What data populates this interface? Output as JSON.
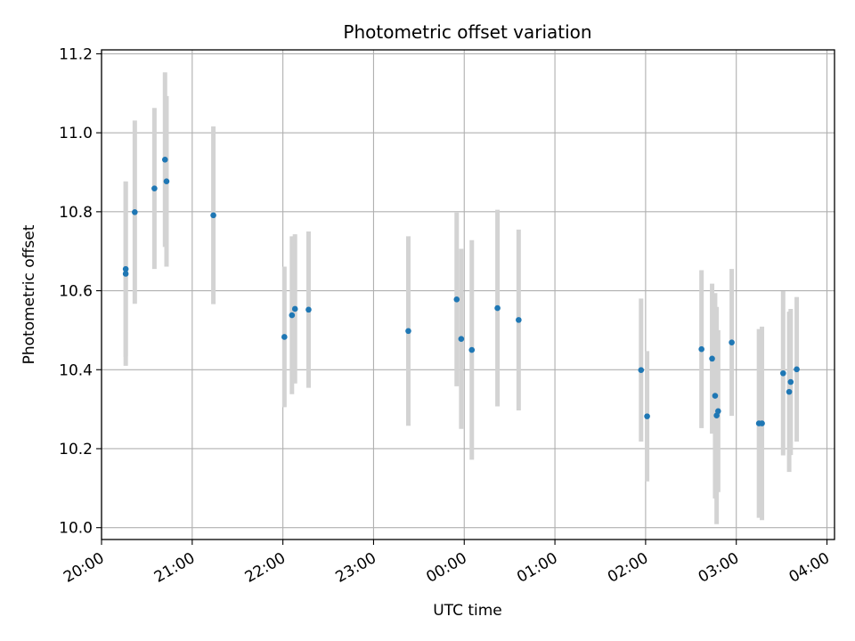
{
  "chart_data": {
    "type": "scatter",
    "title": "Photometric offset variation",
    "xlabel": "UTC time",
    "ylabel": "Photometric offset",
    "grid": true,
    "xlim": [
      "20:00",
      "04:05"
    ],
    "ylim": [
      9.97,
      11.21
    ],
    "x_ticks": [
      "20:00",
      "21:00",
      "22:00",
      "23:00",
      "00:00",
      "01:00",
      "02:00",
      "03:00",
      "04:00"
    ],
    "y_ticks": [
      "10.0",
      "10.2",
      "10.4",
      "10.6",
      "10.8",
      "11.0",
      "11.2"
    ],
    "colors": {
      "point": "#1f77b4",
      "errorbar": "#d3d3d3",
      "grid": "#b0b0b0"
    },
    "series": [
      {
        "points": [
          {
            "x": "20:16",
            "y": 10.643,
            "err": 0.233
          },
          {
            "x": "20:16",
            "y": 10.655,
            "err": 0.222
          },
          {
            "x": "20:22",
            "y": 10.799,
            "err": 0.232
          },
          {
            "x": "20:35",
            "y": 10.859,
            "err": 0.204
          },
          {
            "x": "20:42",
            "y": 10.932,
            "err": 0.221
          },
          {
            "x": "20:43",
            "y": 10.877,
            "err": 0.216
          },
          {
            "x": "21:14",
            "y": 10.791,
            "err": 0.225
          },
          {
            "x": "22:01",
            "y": 10.483,
            "err": 0.178
          },
          {
            "x": "22:06",
            "y": 10.538,
            "err": 0.2
          },
          {
            "x": "22:08",
            "y": 10.554,
            "err": 0.189
          },
          {
            "x": "22:17",
            "y": 10.552,
            "err": 0.198
          },
          {
            "x": "23:23",
            "y": 10.498,
            "err": 0.24
          },
          {
            "x": "23:55",
            "y": 10.578,
            "err": 0.22
          },
          {
            "x": "23:58",
            "y": 10.478,
            "err": 0.228
          },
          {
            "x": "00:05",
            "y": 10.45,
            "err": 0.278
          },
          {
            "x": "00:22",
            "y": 10.556,
            "err": 0.249
          },
          {
            "x": "00:36",
            "y": 10.526,
            "err": 0.229
          },
          {
            "x": "01:57",
            "y": 10.399,
            "err": 0.181
          },
          {
            "x": "02:01",
            "y": 10.282,
            "err": 0.165
          },
          {
            "x": "02:37",
            "y": 10.452,
            "err": 0.2
          },
          {
            "x": "02:44",
            "y": 10.428,
            "err": 0.19
          },
          {
            "x": "02:46",
            "y": 10.334,
            "err": 0.26
          },
          {
            "x": "02:47",
            "y": 10.284,
            "err": 0.275
          },
          {
            "x": "02:48",
            "y": 10.295,
            "err": 0.205
          },
          {
            "x": "02:57",
            "y": 10.469,
            "err": 0.186
          },
          {
            "x": "03:15",
            "y": 10.264,
            "err": 0.239
          },
          {
            "x": "03:17",
            "y": 10.264,
            "err": 0.245
          },
          {
            "x": "03:31",
            "y": 10.391,
            "err": 0.208
          },
          {
            "x": "03:35",
            "y": 10.344,
            "err": 0.203
          },
          {
            "x": "03:36",
            "y": 10.369,
            "err": 0.185
          },
          {
            "x": "03:40",
            "y": 10.401,
            "err": 0.183
          }
        ]
      }
    ]
  }
}
